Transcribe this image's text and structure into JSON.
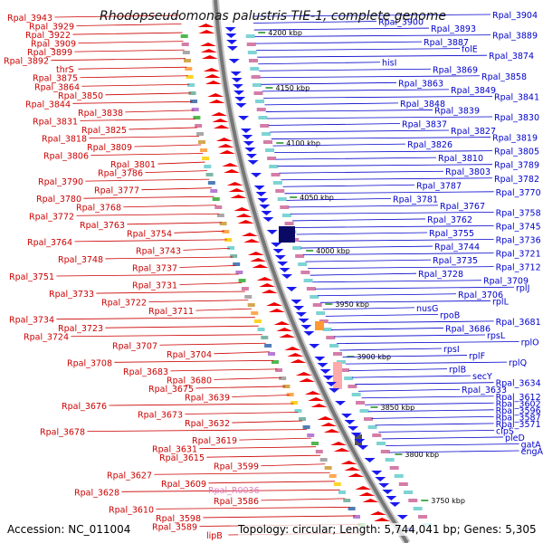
{
  "title": "Rhodopseudomonas palustris TIE-1, complete genome",
  "footer": {
    "accession": "Accession: NC_011004",
    "topology": "Topology: circular; Length: 5,744,041 bp; Genes: 5,305"
  },
  "colors": {
    "left_labels": "#cc0000",
    "right_labels": "#0000cc",
    "special_label": "#e080c0",
    "forward_arrow": "#ee0000",
    "reverse_arrow": "#1a1aee",
    "backbone": "#777777",
    "tick": "#1a8a1a"
  },
  "ticks": [
    "4200 kbp",
    "4150 kbp",
    "4100 kbp",
    "4050 kbp",
    "4000 kbp",
    "3950 kbp",
    "3900 kbp",
    "3850 kbp",
    "3800 kbp",
    "3750 kbp"
  ],
  "left_labels": [
    "Rpal_3943",
    "Rpal_3929",
    "Rpal_3922",
    "Rpal_3909",
    "Rpal_3899",
    "Rpal_3892",
    "thrS",
    "Rpal_3875",
    "Rpal_3864",
    "Rpal_3850",
    "Rpal_3844",
    "Rpal_3838",
    "Rpal_3831",
    "Rpal_3825",
    "Rpal_3818",
    "Rpal_3809",
    "Rpal_3806",
    "Rpal_3801",
    "Rpal_3786",
    "Rpal_3790",
    "Rpal_3777",
    "Rpal_3780",
    "Rpal_3768",
    "Rpal_3772",
    "Rpal_3763",
    "Rpal_3754",
    "Rpal_3764",
    "Rpal_3743",
    "Rpal_3748",
    "Rpal_3737",
    "Rpal_3751",
    "Rpal_3731",
    "Rpal_3733",
    "Rpal_3722",
    "Rpal_3711",
    "Rpal_3734",
    "Rpal_3723",
    "Rpal_3724",
    "Rpal_3707",
    "Rpal_3704",
    "Rpal_3708",
    "Rpal_3683",
    "Rpal_3680",
    "Rpal_3675",
    "Rpal_3639",
    "Rpal_3676",
    "Rpal_3673",
    "Rpal_3632",
    "Rpal_3678",
    "Rpal_3619",
    "Rpal_3631",
    "Rpal_3615",
    "Rpal_3599",
    "Rpal_3627",
    "Rpal_3609",
    "Rpal_3628",
    "Rpal_3586",
    "Rpal_3610",
    "Rpal_3598",
    "Rpal_3589",
    "lipB"
  ],
  "special_left_label": "Rpal_R0036",
  "right_labels": [
    "Rpal_3904",
    "Rpal_3900",
    "Rpal_3893",
    "Rpal_3889",
    "Rpal_3887",
    "folE",
    "Rpal_3874",
    "hisI",
    "Rpal_3869",
    "Rpal_3858",
    "Rpal_3863",
    "Rpal_3849",
    "Rpal_3841",
    "Rpal_3848",
    "Rpal_3839",
    "Rpal_3830",
    "Rpal_3837",
    "Rpal_3827",
    "Rpal_3819",
    "Rpal_3826",
    "Rpal_3805",
    "Rpal_3810",
    "Rpal_3789",
    "Rpal_3803",
    "Rpal_3782",
    "Rpal_3787",
    "Rpal_3770",
    "Rpal_3781",
    "Rpal_3767",
    "Rpal_3758",
    "Rpal_3762",
    "Rpal_3745",
    "Rpal_3755",
    "Rpal_3736",
    "Rpal_3744",
    "Rpal_3721",
    "Rpal_3735",
    "Rpal_3712",
    "Rpal_3728",
    "Rpal_3709",
    "rplJ",
    "Rpal_3706",
    "rplL",
    "nusG",
    "rpoB",
    "Rpal_3681",
    "Rpal_3686",
    "rpsL",
    "rplO",
    "rpsI",
    "rplF",
    "rplQ",
    "rplB",
    "secY",
    "Rpal_3634",
    "Rpal_3633",
    "Rpal_3612",
    "Rpal_3602",
    "Rpal_3596",
    "Rpal_3587",
    "Rpal_3571",
    "clpS",
    "pleD",
    "gatA",
    "engA"
  ]
}
